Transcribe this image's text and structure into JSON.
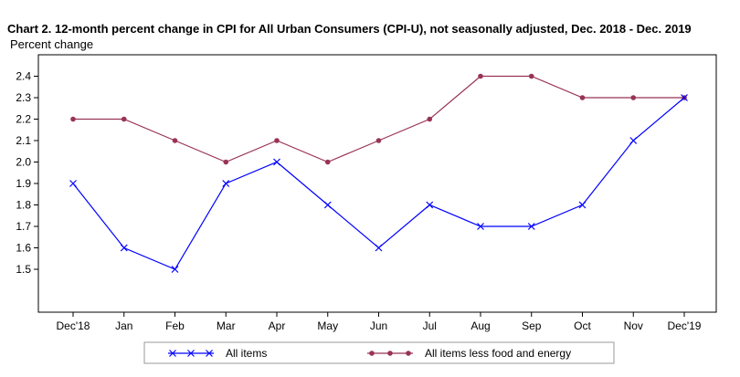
{
  "chart_data": {
    "type": "line",
    "title": "Chart 2. 12-month percent change in CPI for All Urban Consumers (CPI-U), not seasonally adjusted, Dec. 2018 - Dec. 2019",
    "ylabel": "Percent change",
    "xlabel": "",
    "categories": [
      "Dec'18",
      "Jan",
      "Feb",
      "Mar",
      "Apr",
      "May",
      "Jun",
      "Jul",
      "Aug",
      "Sep",
      "Oct",
      "Nov",
      "Dec'19"
    ],
    "yticks": [
      "1.5",
      "1.6",
      "1.7",
      "1.8",
      "1.9",
      "2.0",
      "2.1",
      "2.2",
      "2.3",
      "2.4"
    ],
    "ylim": [
      1.3,
      2.5
    ],
    "grid": false,
    "legend_position": "bottom",
    "series": [
      {
        "name": "All items",
        "color": "#0000ff",
        "marker": "x",
        "values": [
          1.9,
          1.6,
          1.5,
          1.9,
          2.0,
          1.8,
          1.6,
          1.8,
          1.7,
          1.7,
          1.8,
          2.1,
          2.3
        ]
      },
      {
        "name": "All items less food and energy",
        "color": "#993355",
        "marker": "dot",
        "values": [
          2.2,
          2.2,
          2.1,
          2.0,
          2.1,
          2.0,
          2.1,
          2.2,
          2.4,
          2.4,
          2.3,
          2.3,
          2.3
        ]
      }
    ]
  }
}
